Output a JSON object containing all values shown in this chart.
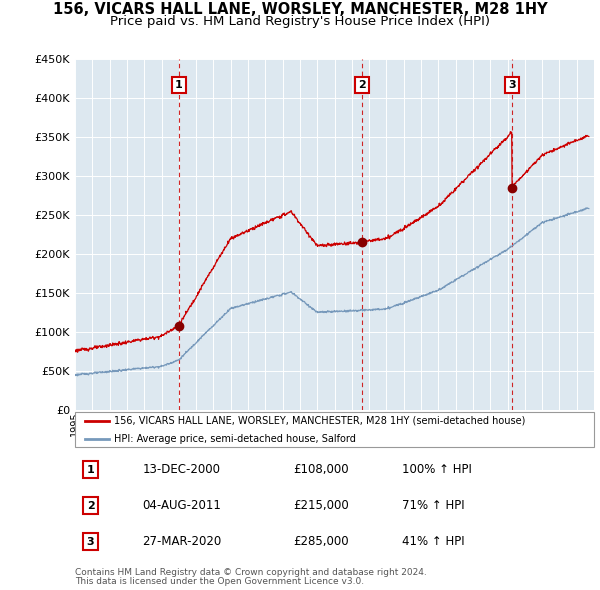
{
  "title": "156, VICARS HALL LANE, WORSLEY, MANCHESTER, M28 1HY",
  "subtitle": "Price paid vs. HM Land Registry's House Price Index (HPI)",
  "red_label": "156, VICARS HALL LANE, WORSLEY, MANCHESTER, M28 1HY (semi-detached house)",
  "blue_label": "HPI: Average price, semi-detached house, Salford",
  "footnote1": "Contains HM Land Registry data © Crown copyright and database right 2024.",
  "footnote2": "This data is licensed under the Open Government Licence v3.0.",
  "sales": [
    {
      "num": 1,
      "date": "13-DEC-2000",
      "price": 108000,
      "hpi_pct": "100% ↑ HPI",
      "year": 2001.0
    },
    {
      "num": 2,
      "date": "04-AUG-2011",
      "price": 215000,
      "hpi_pct": "71% ↑ HPI",
      "year": 2011.6
    },
    {
      "num": 3,
      "date": "27-MAR-2020",
      "price": 285000,
      "hpi_pct": "41% ↑ HPI",
      "year": 2020.25
    }
  ],
  "ylim": [
    0,
    450000
  ],
  "yticks": [
    0,
    50000,
    100000,
    150000,
    200000,
    250000,
    300000,
    350000,
    400000,
    450000
  ],
  "xlim_start": 1995.0,
  "xlim_end": 2025.0,
  "bg_color": "#ffffff",
  "plot_bg_color": "#dde8f0",
  "grid_color": "#ffffff",
  "red_color": "#cc0000",
  "blue_color": "#7799bb",
  "title_fontsize": 10.5,
  "subtitle_fontsize": 9.5
}
